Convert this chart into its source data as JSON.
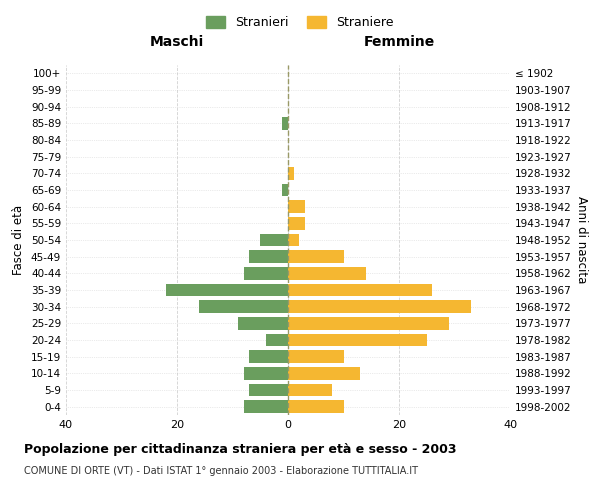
{
  "age_groups": [
    "0-4",
    "5-9",
    "10-14",
    "15-19",
    "20-24",
    "25-29",
    "30-34",
    "35-39",
    "40-44",
    "45-49",
    "50-54",
    "55-59",
    "60-64",
    "65-69",
    "70-74",
    "75-79",
    "80-84",
    "85-89",
    "90-94",
    "95-99",
    "100+"
  ],
  "birth_years": [
    "1998-2002",
    "1993-1997",
    "1988-1992",
    "1983-1987",
    "1978-1982",
    "1973-1977",
    "1968-1972",
    "1963-1967",
    "1958-1962",
    "1953-1957",
    "1948-1952",
    "1943-1947",
    "1938-1942",
    "1933-1937",
    "1928-1932",
    "1923-1927",
    "1918-1922",
    "1913-1917",
    "1908-1912",
    "1903-1907",
    "≤ 1902"
  ],
  "males": [
    8,
    7,
    8,
    7,
    4,
    9,
    16,
    22,
    8,
    7,
    5,
    0,
    0,
    1,
    0,
    0,
    0,
    1,
    0,
    0,
    0
  ],
  "females": [
    10,
    8,
    13,
    10,
    25,
    29,
    33,
    26,
    14,
    10,
    2,
    3,
    3,
    0,
    1,
    0,
    0,
    0,
    0,
    0,
    0
  ],
  "male_color": "#6a9e5e",
  "female_color": "#f5b731",
  "background_color": "#ffffff",
  "grid_color": "#cccccc",
  "center_line_color": "#999966",
  "title": "Popolazione per cittadinanza straniera per età e sesso - 2003",
  "subtitle": "COMUNE DI ORTE (VT) - Dati ISTAT 1° gennaio 2003 - Elaborazione TUTTITALIA.IT",
  "xlabel_left": "Maschi",
  "xlabel_right": "Femmine",
  "ylabel_left": "Fasce di età",
  "ylabel_right": "Anni di nascita",
  "legend_male": "Stranieri",
  "legend_female": "Straniere",
  "xlim": 40
}
